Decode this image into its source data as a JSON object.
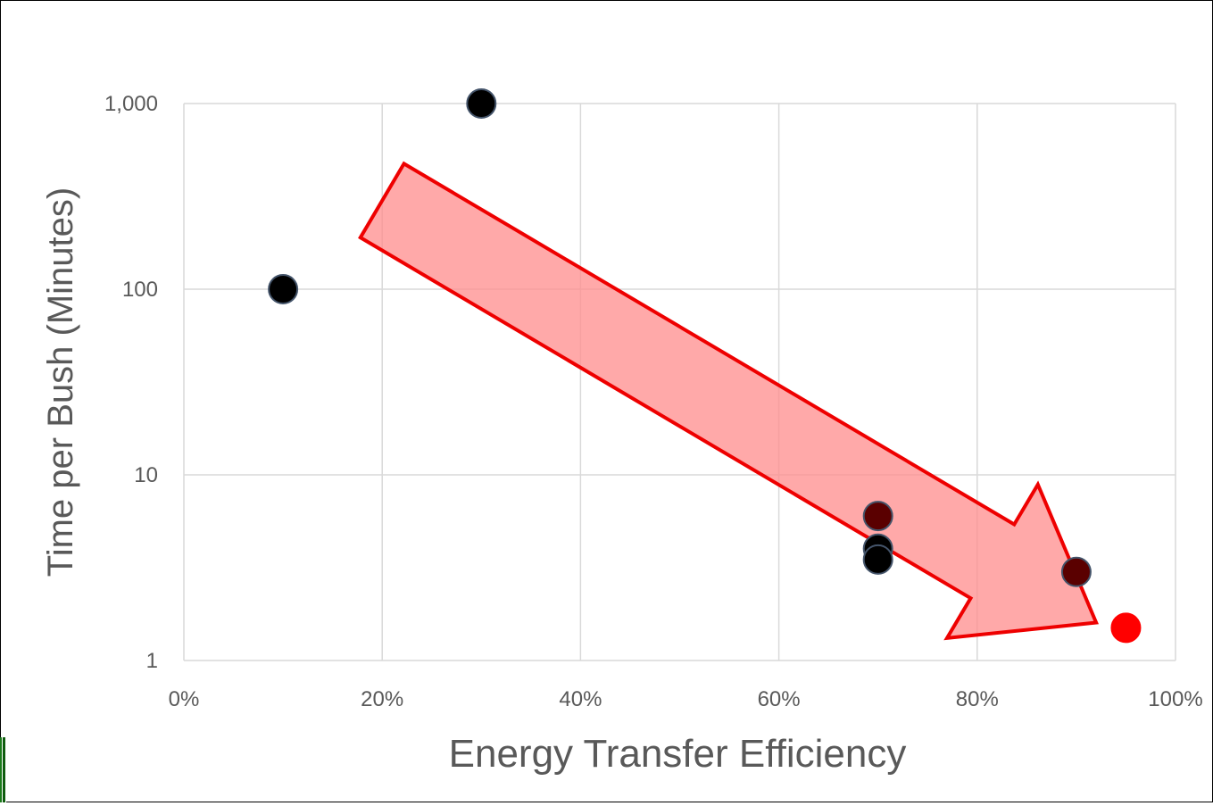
{
  "chart_data": {
    "type": "scatter",
    "title": "",
    "xlabel": "Energy Transfer Efficiency",
    "ylabel": "Time per Bush (Minutes)",
    "x_format": "percent",
    "x_ticks": [
      "0%",
      "20%",
      "40%",
      "60%",
      "80%",
      "100%"
    ],
    "y_ticks": [
      "1",
      "10",
      "100",
      "1,000"
    ],
    "xlim": [
      0,
      1
    ],
    "ylim": [
      1,
      1000
    ],
    "y_scale": "log",
    "grid": true,
    "legend": "none",
    "points": [
      {
        "x": 0.1,
        "y": 100,
        "color": "#000000"
      },
      {
        "x": 0.3,
        "y": 1000,
        "color": "#000000"
      },
      {
        "x": 0.7,
        "y": 4,
        "color": "#000000"
      },
      {
        "x": 0.7,
        "y": 3.5,
        "color": "#000000"
      },
      {
        "x": 0.7,
        "y": 6,
        "color": "#5a0000"
      },
      {
        "x": 0.9,
        "y": 3,
        "color": "#5a0000"
      },
      {
        "x": 0.95,
        "y": 1.5,
        "color": "#ff0000"
      }
    ],
    "annotation": {
      "shape": "arrow",
      "from": {
        "x": 0.2,
        "y": 300
      },
      "to": {
        "x": 0.92,
        "y": 1.6
      },
      "fill": "#ff8c8c",
      "stroke": "#ee0000"
    }
  }
}
